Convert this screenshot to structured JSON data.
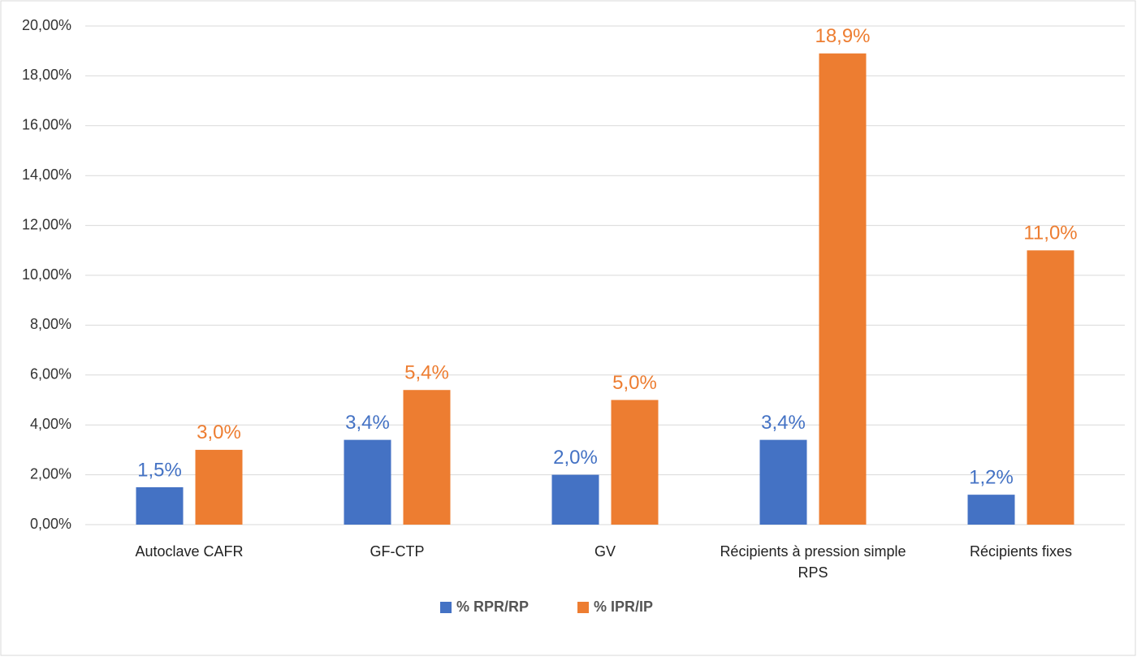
{
  "chart_data": {
    "type": "bar",
    "categories": [
      "Autoclave CAFR",
      "GF-CTP",
      "GV",
      "Récipients à pression simple RPS",
      "Récipients fixes"
    ],
    "series": [
      {
        "name": "% RPR/RP",
        "color": "#4472c4",
        "values": [
          1.5,
          3.4,
          2.0,
          3.4,
          1.2
        ],
        "value_labels": [
          "1,5%",
          "3,4%",
          "2,0%",
          "3,4%",
          "1,2%"
        ]
      },
      {
        "name": "% IPR/IP",
        "color": "#ed7d31",
        "values": [
          3.0,
          5.4,
          5.0,
          18.9,
          11.0
        ],
        "value_labels": [
          "3,0%",
          "5,4%",
          "5,0%",
          "18,9%",
          "11,0%"
        ]
      }
    ],
    "ylim": [
      0,
      20
    ],
    "yticks": [
      {
        "value": 0,
        "label": "0,00%"
      },
      {
        "value": 2,
        "label": "2,00%"
      },
      {
        "value": 4,
        "label": "4,00%"
      },
      {
        "value": 6,
        "label": "6,00%"
      },
      {
        "value": 8,
        "label": "8,00%"
      },
      {
        "value": 10,
        "label": "10,00%"
      },
      {
        "value": 12,
        "label": "12,00%"
      },
      {
        "value": 14,
        "label": "14,00%"
      },
      {
        "value": 16,
        "label": "16,00%"
      },
      {
        "value": 18,
        "label": "18,00%"
      },
      {
        "value": 20,
        "label": "20,00%"
      }
    ],
    "grid": true,
    "legend": "bottom"
  }
}
